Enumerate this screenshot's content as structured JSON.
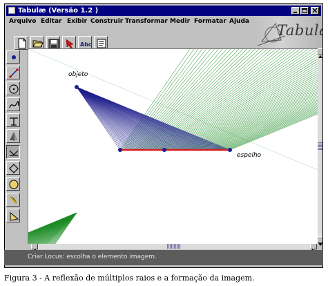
{
  "window": {
    "title": "Tabulæ (Versão 1.2 )",
    "controls": [
      "minimize",
      "maximize",
      "close"
    ]
  },
  "menu": {
    "items": [
      "Arquivo",
      "Editar",
      "Exibir",
      "Construir",
      "Transformar",
      "Medir",
      "Formatar",
      "Ajuda"
    ]
  },
  "logo": {
    "text": "Tabulæ"
  },
  "toolbar": {
    "tools": [
      "new-file-icon",
      "open-folder-icon",
      "save-disk-icon",
      "pointer-arrow-icon",
      "label-text-icon",
      "notes-icon"
    ],
    "label_tool_text": "Abc"
  },
  "left_tools": [
    "point-icon",
    "segment-icon",
    "circle-icon",
    "curve-icon",
    "perpendicular-icon",
    "symmetry-icon",
    "reflection-icon",
    "polygon-icon",
    "circle-outline-icon",
    "arc-icon",
    "triangle-icon"
  ],
  "canvas": {
    "object_label": "objeto",
    "mirror_label": "espelho"
  },
  "colors": {
    "title_bar": "#000080",
    "incident_rays": "#22228e",
    "reflected_rays": "#1c8c24",
    "mirror": "#d81c1c",
    "points": "#1e1e8c",
    "status_bar": "#5c5c5c"
  },
  "status": {
    "text": "Criar Locus: escolha o elemento imagem."
  },
  "caption": {
    "text": "Figura 3 - A reflexão de múltiplos raios e a formação da imagem."
  }
}
